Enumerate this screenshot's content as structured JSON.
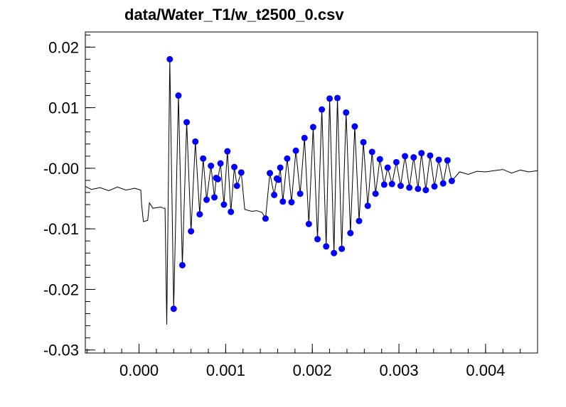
{
  "chart_data": {
    "type": "scatter",
    "title": "data/Water_T1/w_t2500_0.csv",
    "xlabel": "",
    "ylabel": "",
    "xlim": [
      -0.00062,
      0.0046
    ],
    "ylim": [
      -0.0305,
      0.0225
    ],
    "grid": false,
    "x_ticks": [
      {
        "value": 0.0,
        "label": "0.000"
      },
      {
        "value": 0.001,
        "label": "0.001"
      },
      {
        "value": 0.002,
        "label": "0.002"
      },
      {
        "value": 0.003,
        "label": "0.003"
      },
      {
        "value": 0.004,
        "label": "0.004"
      }
    ],
    "y_ticks": [
      {
        "value": 0.02,
        "label": "0.02"
      },
      {
        "value": 0.01,
        "label": "0.01"
      },
      {
        "value": 0.0,
        "label": "-0.00"
      },
      {
        "value": -0.01,
        "label": "-0.01"
      },
      {
        "value": -0.02,
        "label": "-0.02"
      },
      {
        "value": -0.03,
        "label": "-0.03"
      }
    ],
    "series": [
      {
        "style": "line",
        "color": "#000000",
        "points": [
          [
            -0.00062,
            -0.003
          ],
          [
            -0.00055,
            -0.0035
          ],
          [
            -0.00045,
            -0.0032
          ],
          [
            -0.00035,
            -0.0037
          ],
          [
            -0.00025,
            -0.0031
          ],
          [
            -0.00015,
            -0.0036
          ],
          [
            -5e-05,
            -0.0033
          ],
          [
            2e-05,
            -0.0036
          ],
          [
            3e-05,
            -0.006
          ],
          [
            5e-05,
            -0.0088
          ],
          [
            0.0001,
            -0.0086
          ],
          [
            0.00012,
            -0.0057
          ],
          [
            0.00016,
            -0.0066
          ],
          [
            0.00025,
            -0.0064
          ],
          [
            0.00028,
            -0.0066
          ],
          [
            0.0003,
            -0.0066
          ],
          [
            0.00032,
            -0.0258
          ],
          [
            0.000355,
            0.018
          ],
          [
            0.0004,
            -0.0232
          ],
          [
            0.000455,
            0.012
          ],
          [
            0.0005,
            -0.016
          ],
          [
            0.00055,
            0.0076
          ],
          [
            0.0006,
            -0.0104
          ],
          [
            0.00065,
            0.0044
          ],
          [
            0.0007,
            -0.0076
          ],
          [
            0.00074,
            0.0016
          ],
          [
            0.00078,
            -0.0052
          ],
          [
            0.00083,
            0.0004
          ],
          [
            0.00087,
            -0.0048
          ],
          [
            0.00089,
            -0.0016
          ],
          [
            0.00091,
            -0.0018
          ],
          [
            0.00094,
            0.0008
          ],
          [
            0.00098,
            -0.006
          ],
          [
            0.00102,
            0.0028
          ],
          [
            0.00106,
            -0.0072
          ],
          [
            0.0011,
            0.0002
          ],
          [
            0.00113,
            -0.0029
          ],
          [
            0.00118,
            -0.0007
          ],
          [
            0.00122,
            -0.0068
          ],
          [
            0.0013,
            -0.0071
          ],
          [
            0.00136,
            -0.007
          ],
          [
            0.00142,
            -0.0073
          ],
          [
            0.00146,
            -0.0083
          ],
          [
            0.00151,
            -0.0008
          ],
          [
            0.00156,
            -0.0044
          ],
          [
            0.00159,
            -0.0017
          ],
          [
            0.00161,
            -0.0019
          ],
          [
            0.00163,
            0.0001
          ],
          [
            0.00166,
            -0.0055
          ],
          [
            0.00171,
            0.0016
          ],
          [
            0.00176,
            -0.0056
          ],
          [
            0.00181,
            0.0029
          ],
          [
            0.00186,
            -0.0042
          ],
          [
            0.00191,
            0.005
          ],
          [
            0.00196,
            -0.0092
          ],
          [
            0.00201,
            0.0068
          ],
          [
            0.00206,
            -0.0117
          ],
          [
            0.00211,
            0.0097
          ],
          [
            0.00216,
            -0.0129
          ],
          [
            0.0022,
            0.0115
          ],
          [
            0.00225,
            -0.014
          ],
          [
            0.00229,
            0.0116
          ],
          [
            0.00234,
            -0.0133
          ],
          [
            0.00239,
            0.0092
          ],
          [
            0.00244,
            -0.0107
          ],
          [
            0.00249,
            0.0069
          ],
          [
            0.00254,
            -0.0087
          ],
          [
            0.00259,
            0.0043
          ],
          [
            0.00264,
            -0.0062
          ],
          [
            0.00269,
            0.0027
          ],
          [
            0.00273,
            -0.0042
          ],
          [
            0.00278,
            0.0015
          ],
          [
            0.00283,
            -0.0027
          ],
          [
            0.00287,
            0.0001
          ],
          [
            0.00292,
            -0.0026
          ],
          [
            0.00297,
            0.001
          ],
          [
            0.00302,
            -0.0029
          ],
          [
            0.00307,
            0.002
          ],
          [
            0.00312,
            -0.0032
          ],
          [
            0.00317,
            0.0018
          ],
          [
            0.00322,
            -0.0034
          ],
          [
            0.00326,
            0.0025
          ],
          [
            0.00331,
            -0.0036
          ],
          [
            0.00336,
            0.0021
          ],
          [
            0.00341,
            -0.003
          ],
          [
            0.00346,
            0.0014
          ],
          [
            0.00351,
            -0.0025
          ],
          [
            0.00356,
            0.0013
          ],
          [
            0.00361,
            -0.0021
          ],
          [
            0.0037,
            -0.0006
          ],
          [
            0.0038,
            -0.001
          ],
          [
            0.0039,
            -0.0005
          ],
          [
            0.004,
            -0.0006
          ],
          [
            0.0041,
            -0.0004
          ],
          [
            0.0042,
            -0.0002
          ],
          [
            0.0043,
            -0.0008
          ],
          [
            0.0044,
            -0.0003
          ],
          [
            0.0045,
            -0.0006
          ],
          [
            0.0046,
            -0.0004
          ]
        ]
      },
      {
        "style": "markers",
        "color": "#0000ff",
        "points": [
          [
            0.000355,
            0.018
          ],
          [
            0.0004,
            -0.0232
          ],
          [
            0.000455,
            0.012
          ],
          [
            0.0005,
            -0.016
          ],
          [
            0.00055,
            0.0076
          ],
          [
            0.0006,
            -0.0104
          ],
          [
            0.00065,
            0.0044
          ],
          [
            0.0007,
            -0.0076
          ],
          [
            0.00074,
            0.0016
          ],
          [
            0.00078,
            -0.0052
          ],
          [
            0.00083,
            0.0004
          ],
          [
            0.00087,
            -0.0048
          ],
          [
            0.00089,
            -0.0016
          ],
          [
            0.00091,
            -0.0018
          ],
          [
            0.00094,
            0.0008
          ],
          [
            0.00098,
            -0.006
          ],
          [
            0.00102,
            0.0028
          ],
          [
            0.00106,
            -0.0072
          ],
          [
            0.0011,
            0.0002
          ],
          [
            0.00113,
            -0.0029
          ],
          [
            0.00118,
            -0.0007
          ],
          [
            0.00146,
            -0.0083
          ],
          [
            0.00151,
            -0.0008
          ],
          [
            0.00156,
            -0.0044
          ],
          [
            0.00159,
            -0.0017
          ],
          [
            0.00161,
            -0.0019
          ],
          [
            0.00163,
            0.0001
          ],
          [
            0.00166,
            -0.0055
          ],
          [
            0.00171,
            0.0016
          ],
          [
            0.00176,
            -0.0056
          ],
          [
            0.00181,
            0.0029
          ],
          [
            0.00186,
            -0.0042
          ],
          [
            0.00191,
            0.005
          ],
          [
            0.00196,
            -0.0092
          ],
          [
            0.00201,
            0.0068
          ],
          [
            0.00206,
            -0.0117
          ],
          [
            0.00211,
            0.0097
          ],
          [
            0.00216,
            -0.0129
          ],
          [
            0.0022,
            0.0115
          ],
          [
            0.00225,
            -0.014
          ],
          [
            0.00229,
            0.0116
          ],
          [
            0.00234,
            -0.0133
          ],
          [
            0.00239,
            0.0092
          ],
          [
            0.00244,
            -0.0107
          ],
          [
            0.00249,
            0.0069
          ],
          [
            0.00254,
            -0.0087
          ],
          [
            0.00259,
            0.0043
          ],
          [
            0.00264,
            -0.0062
          ],
          [
            0.00269,
            0.0027
          ],
          [
            0.00273,
            -0.0042
          ],
          [
            0.00278,
            0.0015
          ],
          [
            0.00283,
            -0.0027
          ],
          [
            0.00287,
            0.0001
          ],
          [
            0.00292,
            -0.0026
          ],
          [
            0.00297,
            0.001
          ],
          [
            0.00302,
            -0.0029
          ],
          [
            0.00307,
            0.002
          ],
          [
            0.00312,
            -0.0032
          ],
          [
            0.00317,
            0.0018
          ],
          [
            0.00322,
            -0.0034
          ],
          [
            0.00326,
            0.0025
          ],
          [
            0.00331,
            -0.0036
          ],
          [
            0.00336,
            0.0021
          ],
          [
            0.00341,
            -0.003
          ],
          [
            0.00346,
            0.0014
          ],
          [
            0.00351,
            -0.0025
          ],
          [
            0.00356,
            0.0013
          ],
          [
            0.00361,
            -0.0021
          ]
        ]
      }
    ]
  }
}
